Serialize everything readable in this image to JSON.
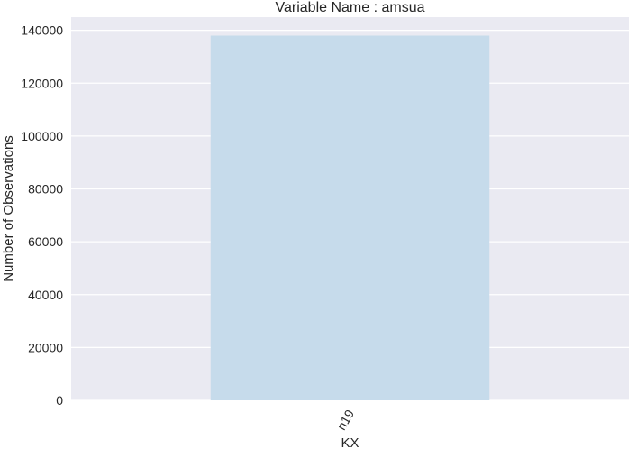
{
  "colors": {
    "plot_background": "#eaeaf2",
    "grid": "#ffffff",
    "bar_fill": "#c6dbeb",
    "text": "#262626"
  },
  "chart_data": {
    "type": "bar",
    "title": "Variable Name : amsua",
    "xlabel": "KX",
    "ylabel": "Number of Observations",
    "categories": [
      "n19"
    ],
    "values": [
      138000
    ],
    "ylim": [
      0,
      145000
    ],
    "yticks": [
      0,
      20000,
      40000,
      60000,
      80000,
      100000,
      120000,
      140000
    ],
    "ytick_labels": [
      "0",
      "20000",
      "40000",
      "60000",
      "80000",
      "100000",
      "120000",
      "140000"
    ],
    "xtick_rotation_deg": -60,
    "grid": true,
    "legend": "none"
  }
}
